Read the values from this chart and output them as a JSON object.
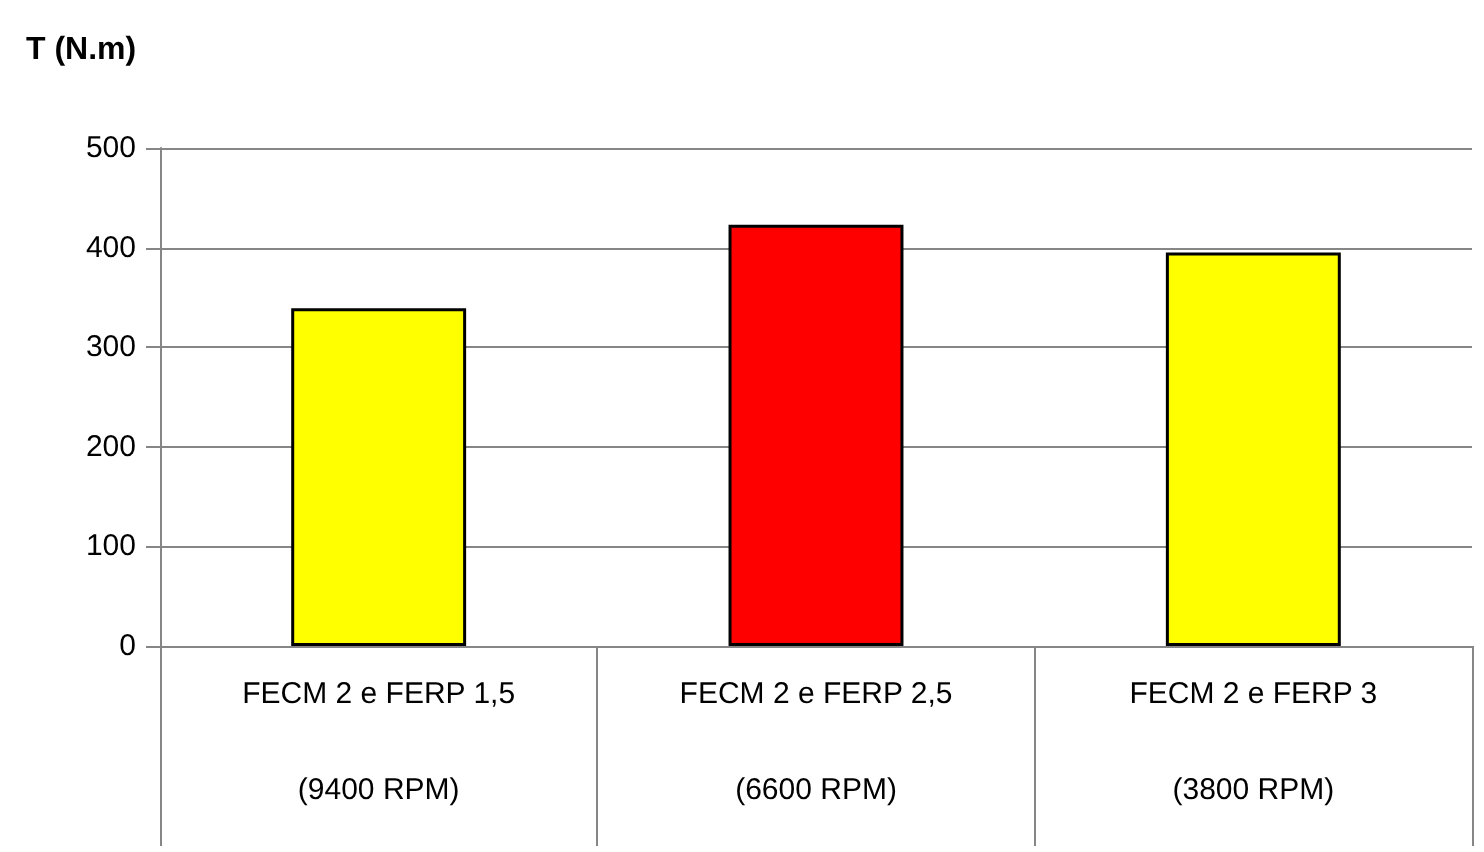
{
  "chart_data": {
    "type": "bar",
    "ylabel": "T (N.m)",
    "categories": [
      "FECM 2 e FERP 1,5\n(9400 RPM)",
      "FECM 2 e FERP 2,5\n(6600 RPM)",
      "FECM 2 e FERP 3\n(3800 RPM)"
    ],
    "values": [
      339,
      423,
      395
    ],
    "colors": [
      "#ffff00",
      "#ff0000",
      "#ffff00"
    ],
    "ylim": [
      0,
      500
    ],
    "yticks": [
      0,
      100,
      200,
      300,
      400,
      500
    ],
    "grid": "y"
  }
}
